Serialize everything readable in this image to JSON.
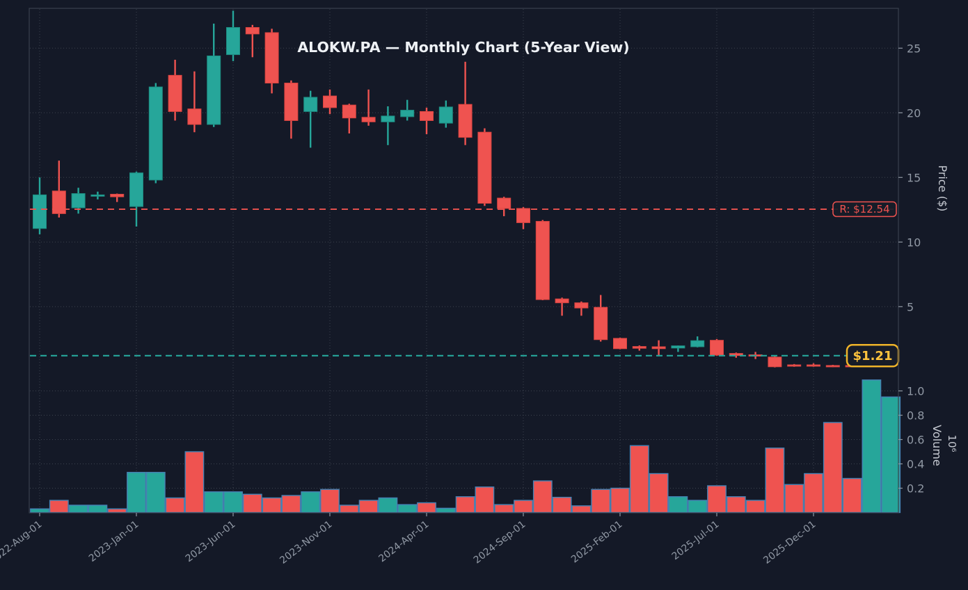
{
  "title": "ALOKW.PA — Monthly Chart (5-Year View)",
  "colors": {
    "background": "#141927",
    "up": "#26a69a",
    "down": "#ef5350",
    "up_edge": "#1d8d82",
    "down_edge": "#d94440",
    "volume_edge": "#4682b4",
    "grid": "#3d434f",
    "spine": "#39404d",
    "tick_text": "#9098a4",
    "title_text": "#eef1f5",
    "resistance": "#ef5350",
    "current_line": "#26a69a",
    "badge_gold_border": "#f0b429",
    "badge_gold_text": "#ffc43d",
    "badge_bg": "#171c28"
  },
  "price_axis": {
    "label": "Price ($)",
    "ticks": [
      5,
      10,
      15,
      20,
      25
    ]
  },
  "volume_axis": {
    "label": "Volume",
    "unit": "10⁶",
    "ticks": [
      0.2,
      0.4,
      0.6,
      0.8,
      1.0
    ]
  },
  "x_axis": {
    "tick_labels": [
      "2022-Aug-01",
      "2023-Jan-01",
      "2023-Jun-01",
      "2023-Nov-01",
      "2024-Apr-01",
      "2024-Sep-01",
      "2025-Feb-01",
      "2025-Jul-01",
      "2025-Dec-01"
    ],
    "tick_indices": [
      0,
      5,
      10,
      15,
      20,
      25,
      30,
      35,
      40
    ]
  },
  "annotations": {
    "resistance": {
      "label": "R: $12.54",
      "price": 12.54
    },
    "current": {
      "label": "$1.21",
      "price": 1.21
    }
  },
  "chart_data": {
    "type": "candlestick",
    "volume_unit": "×10⁶ shares",
    "ohlc_fields": [
      "date",
      "open",
      "high",
      "low",
      "close",
      "volume_millions"
    ],
    "candles": [
      {
        "date": "2022-08",
        "o": 11.05,
        "h": 15.0,
        "l": 10.6,
        "c": 13.65,
        "v": 0.03
      },
      {
        "date": "2022-09",
        "o": 13.95,
        "h": 16.3,
        "l": 11.9,
        "c": 12.2,
        "v": 0.1
      },
      {
        "date": "2022-10",
        "o": 12.65,
        "h": 14.2,
        "l": 12.2,
        "c": 13.75,
        "v": 0.06
      },
      {
        "date": "2022-11",
        "o": 13.55,
        "h": 13.9,
        "l": 13.3,
        "c": 13.65,
        "v": 0.06
      },
      {
        "date": "2022-12",
        "o": 13.7,
        "h": 13.75,
        "l": 13.1,
        "c": 13.5,
        "v": 0.03
      },
      {
        "date": "2023-01",
        "o": 12.75,
        "h": 15.45,
        "l": 11.2,
        "c": 15.35,
        "v": 0.33
      },
      {
        "date": "2023-02",
        "o": 14.8,
        "h": 22.3,
        "l": 14.55,
        "c": 22.0,
        "v": 0.33
      },
      {
        "date": "2023-03",
        "o": 22.9,
        "h": 24.1,
        "l": 19.4,
        "c": 20.1,
        "v": 0.12
      },
      {
        "date": "2023-04",
        "o": 20.3,
        "h": 23.2,
        "l": 18.5,
        "c": 19.1,
        "v": 0.5
      },
      {
        "date": "2023-05",
        "o": 19.1,
        "h": 26.9,
        "l": 18.9,
        "c": 24.4,
        "v": 0.17
      },
      {
        "date": "2023-06",
        "o": 24.5,
        "h": 27.9,
        "l": 24.0,
        "c": 26.6,
        "v": 0.17
      },
      {
        "date": "2023-07",
        "o": 26.6,
        "h": 26.8,
        "l": 24.3,
        "c": 26.1,
        "v": 0.15
      },
      {
        "date": "2023-08",
        "o": 26.2,
        "h": 26.5,
        "l": 21.5,
        "c": 22.3,
        "v": 0.12
      },
      {
        "date": "2023-09",
        "o": 22.3,
        "h": 22.5,
        "l": 18.0,
        "c": 19.4,
        "v": 0.14
      },
      {
        "date": "2023-10",
        "o": 20.1,
        "h": 21.7,
        "l": 17.3,
        "c": 21.2,
        "v": 0.17
      },
      {
        "date": "2023-11",
        "o": 21.3,
        "h": 21.8,
        "l": 19.9,
        "c": 20.4,
        "v": 0.19
      },
      {
        "date": "2023-12",
        "o": 20.6,
        "h": 20.7,
        "l": 18.4,
        "c": 19.6,
        "v": 0.06
      },
      {
        "date": "2024-01",
        "o": 19.65,
        "h": 21.8,
        "l": 19.0,
        "c": 19.3,
        "v": 0.1
      },
      {
        "date": "2024-02",
        "o": 19.3,
        "h": 20.5,
        "l": 17.5,
        "c": 19.75,
        "v": 0.12
      },
      {
        "date": "2024-03",
        "o": 19.7,
        "h": 21.0,
        "l": 19.4,
        "c": 20.2,
        "v": 0.065
      },
      {
        "date": "2024-04",
        "o": 20.1,
        "h": 20.4,
        "l": 18.35,
        "c": 19.4,
        "v": 0.08
      },
      {
        "date": "2024-05",
        "o": 19.2,
        "h": 20.95,
        "l": 18.85,
        "c": 20.45,
        "v": 0.035
      },
      {
        "date": "2024-06",
        "o": 20.65,
        "h": 23.95,
        "l": 17.5,
        "c": 18.1,
        "v": 0.13
      },
      {
        "date": "2024-07",
        "o": 18.5,
        "h": 18.8,
        "l": 12.8,
        "c": 13.0,
        "v": 0.21
      },
      {
        "date": "2024-08",
        "o": 13.4,
        "h": 13.5,
        "l": 12.0,
        "c": 12.6,
        "v": 0.065
      },
      {
        "date": "2024-09",
        "o": 12.6,
        "h": 12.7,
        "l": 11.0,
        "c": 11.5,
        "v": 0.1
      },
      {
        "date": "2024-10",
        "o": 11.6,
        "h": 11.7,
        "l": 5.5,
        "c": 5.55,
        "v": 0.26
      },
      {
        "date": "2024-11",
        "o": 5.6,
        "h": 5.7,
        "l": 4.3,
        "c": 5.3,
        "v": 0.125
      },
      {
        "date": "2024-12",
        "o": 5.3,
        "h": 5.4,
        "l": 4.3,
        "c": 4.9,
        "v": 0.055
      },
      {
        "date": "2025-01",
        "o": 4.95,
        "h": 5.9,
        "l": 2.3,
        "c": 2.45,
        "v": 0.19
      },
      {
        "date": "2025-02",
        "o": 2.55,
        "h": 2.6,
        "l": 1.7,
        "c": 1.75,
        "v": 0.2
      },
      {
        "date": "2025-03",
        "o": 1.92,
        "h": 2.0,
        "l": 1.6,
        "c": 1.78,
        "v": 0.55
      },
      {
        "date": "2025-04",
        "o": 1.9,
        "h": 2.4,
        "l": 1.2,
        "c": 1.75,
        "v": 0.32
      },
      {
        "date": "2025-05",
        "o": 1.8,
        "h": 2.0,
        "l": 1.5,
        "c": 1.97,
        "v": 0.13
      },
      {
        "date": "2025-06",
        "o": 1.9,
        "h": 2.7,
        "l": 1.85,
        "c": 2.37,
        "v": 0.1
      },
      {
        "date": "2025-07",
        "o": 2.4,
        "h": 2.5,
        "l": 1.2,
        "c": 1.25,
        "v": 0.22
      },
      {
        "date": "2025-08",
        "o": 1.38,
        "h": 1.45,
        "l": 1.05,
        "c": 1.22,
        "v": 0.13
      },
      {
        "date": "2025-09",
        "o": 1.28,
        "h": 1.5,
        "l": 0.95,
        "c": 1.22,
        "v": 0.1
      },
      {
        "date": "2025-10",
        "o": 1.1,
        "h": 1.2,
        "l": 0.3,
        "c": 0.35,
        "v": 0.53
      },
      {
        "date": "2025-11",
        "o": 0.5,
        "h": 0.56,
        "l": 0.35,
        "c": 0.42,
        "v": 0.23
      },
      {
        "date": "2025-12",
        "o": 0.5,
        "h": 0.62,
        "l": 0.35,
        "c": 0.45,
        "v": 0.32
      },
      {
        "date": "2026-01",
        "o": 0.45,
        "h": 0.5,
        "l": 0.32,
        "c": 0.38,
        "v": 0.74
      },
      {
        "date": "2026-02",
        "o": 0.45,
        "h": 0.5,
        "l": 0.35,
        "c": 0.4,
        "v": 0.28
      },
      {
        "date": "2026-03",
        "o": 0.38,
        "h": 0.6,
        "l": 0.35,
        "c": 0.55,
        "v": 1.09
      },
      {
        "date": "2026-04",
        "o": 0.55,
        "h": 1.25,
        "l": 0.5,
        "c": 1.21,
        "v": 0.95
      }
    ]
  }
}
